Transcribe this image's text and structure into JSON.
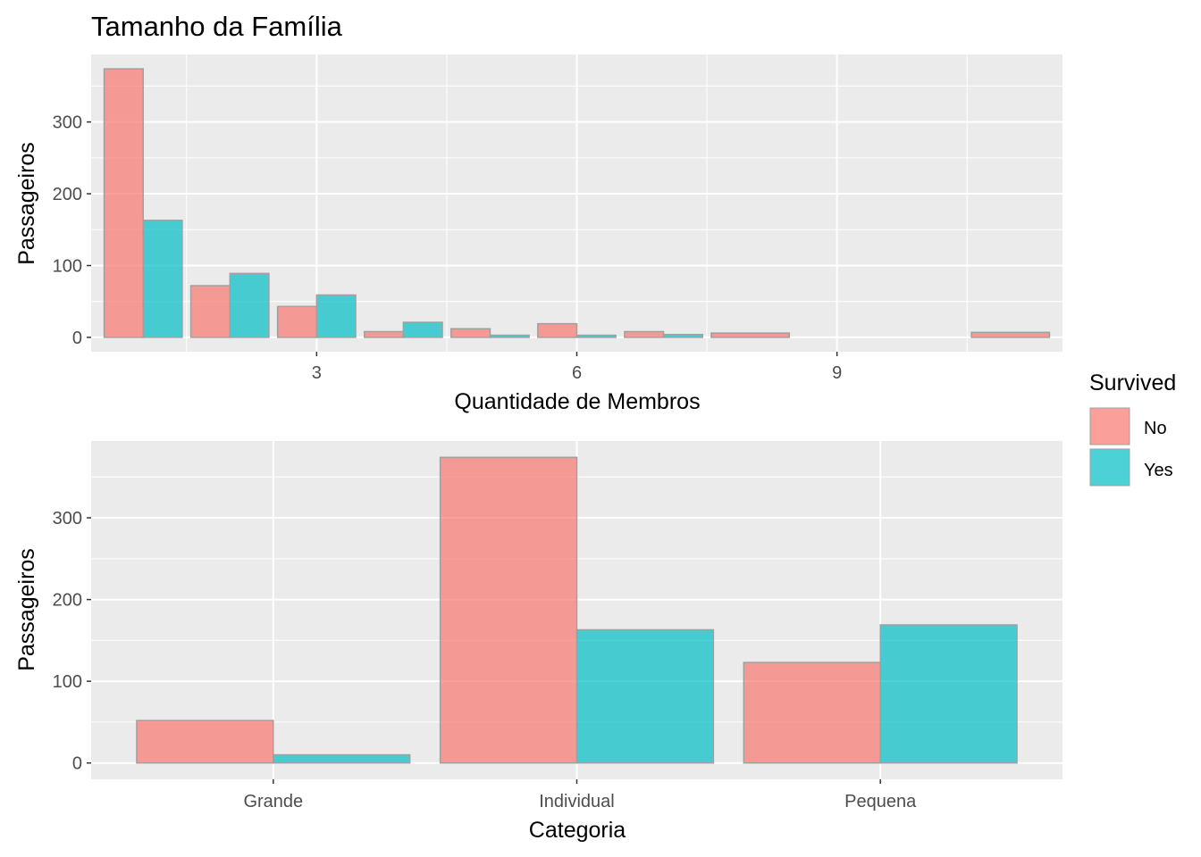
{
  "title": "Tamanho da Família",
  "colors": {
    "No": "#F8766D",
    "Yes": "#00BFC4",
    "bar_outline": "#a0a0a0",
    "panel_bg": "#EBEBEB",
    "grid": "#ffffff"
  },
  "legend": {
    "title": "Survived",
    "placement": "right",
    "items": [
      {
        "label": "No",
        "color": "#F8766D"
      },
      {
        "label": "Yes",
        "color": "#00BFC4"
      }
    ]
  },
  "chart_data": [
    {
      "type": "bar",
      "position": "dodge",
      "title": "Tamanho da Família",
      "xlabel": "Quantidade de Membros",
      "ylabel": "Passageiros",
      "x": [
        1,
        2,
        3,
        4,
        5,
        6,
        7,
        8,
        11
      ],
      "x_ticks": [
        3,
        6,
        9
      ],
      "x_tick_labels": [
        "3",
        "6",
        "9"
      ],
      "xlim": [
        0.4,
        11.6
      ],
      "y_ticks": [
        0,
        100,
        200,
        300
      ],
      "y_tick_labels": [
        "0",
        "100",
        "200",
        "300"
      ],
      "ylim": [
        -20,
        394
      ],
      "grid": true,
      "series": [
        {
          "name": "No",
          "values": [
            374,
            72,
            43,
            8,
            12,
            19,
            8,
            6,
            7
          ]
        },
        {
          "name": "Yes",
          "values": [
            163,
            89,
            59,
            21,
            3,
            3,
            4,
            0,
            0
          ]
        }
      ]
    },
    {
      "type": "bar",
      "position": "dodge",
      "xlabel": "Categoria",
      "ylabel": "Passageiros",
      "categories": [
        "Grande",
        "Individual",
        "Pequena"
      ],
      "y_ticks": [
        0,
        100,
        200,
        300
      ],
      "y_tick_labels": [
        "0",
        "100",
        "200",
        "300"
      ],
      "ylim": [
        -20,
        394
      ],
      "grid": true,
      "series": [
        {
          "name": "No",
          "values": [
            52,
            374,
            123
          ]
        },
        {
          "name": "Yes",
          "values": [
            10,
            163,
            169
          ]
        }
      ]
    }
  ]
}
